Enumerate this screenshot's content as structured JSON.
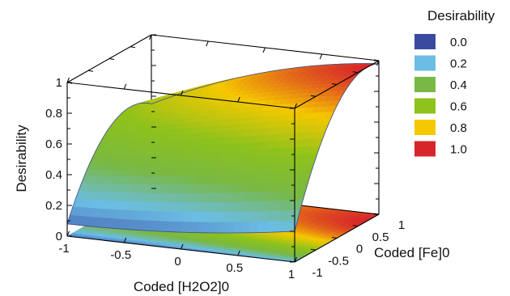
{
  "chart_data": {
    "type": "surface3d",
    "z_title": "Desirability",
    "x_title": "Coded [H2O2]0",
    "y_title": "Coded [Fe]0",
    "x_ticks": [
      "-1",
      "-0.5",
      "0",
      "0.5",
      "1"
    ],
    "y_ticks": [
      "-1",
      "-0.5",
      "0",
      "0.5",
      "1"
    ],
    "z_ticks": [
      "0",
      "0.2",
      "0.4",
      "0.6",
      "0.8",
      "1"
    ],
    "xlim": [
      -1,
      1
    ],
    "ylim": [
      -1,
      1
    ],
    "zlim": [
      0,
      1
    ],
    "grid": false,
    "contour_projection": "floor",
    "legend": {
      "title": "Desirability",
      "position": "right",
      "entries": [
        {
          "label": "0.0",
          "color": "#3b4aa1"
        },
        {
          "label": "0.2",
          "color": "#6bbde6"
        },
        {
          "label": "0.4",
          "color": "#79b842"
        },
        {
          "label": "0.6",
          "color": "#8ec21c"
        },
        {
          "label": "0.8",
          "color": "#f5c800"
        },
        {
          "label": "1.0",
          "color": "#d7262b"
        }
      ]
    },
    "surface": {
      "x": [
        -1,
        0,
        1
      ],
      "y": [
        -1,
        0,
        1
      ],
      "z": [
        [
          0.08,
          0.11,
          0.2
        ],
        [
          0.55,
          0.72,
          0.86
        ],
        [
          0.55,
          0.84,
          0.98
        ]
      ]
    }
  }
}
